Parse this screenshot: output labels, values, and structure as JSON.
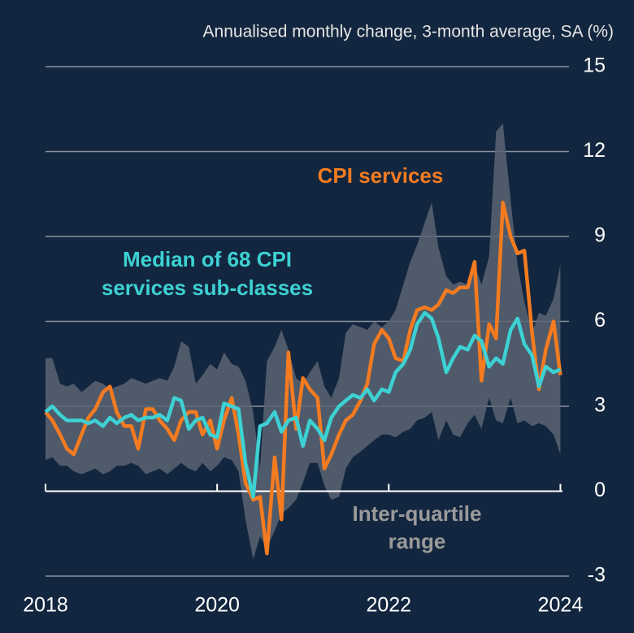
{
  "chart_data": {
    "type": "line",
    "title": "Annualised monthly change, 3-month average, SA (%)",
    "x": [
      2018.0,
      2018.08,
      2018.17,
      2018.25,
      2018.33,
      2018.42,
      2018.5,
      2018.58,
      2018.67,
      2018.75,
      2018.83,
      2018.92,
      2019.0,
      2019.08,
      2019.17,
      2019.25,
      2019.33,
      2019.42,
      2019.5,
      2019.58,
      2019.67,
      2019.75,
      2019.83,
      2019.92,
      2020.0,
      2020.08,
      2020.17,
      2020.25,
      2020.33,
      2020.42,
      2020.5,
      2020.58,
      2020.67,
      2020.75,
      2020.83,
      2020.92,
      2021.0,
      2021.08,
      2021.17,
      2021.25,
      2021.33,
      2021.42,
      2021.5,
      2021.58,
      2021.67,
      2021.75,
      2021.83,
      2021.92,
      2022.0,
      2022.08,
      2022.17,
      2022.25,
      2022.33,
      2022.42,
      2022.5,
      2022.58,
      2022.67,
      2022.75,
      2022.83,
      2022.92,
      2023.0,
      2023.08,
      2023.17,
      2023.25,
      2023.33,
      2023.42,
      2023.5,
      2023.58,
      2023.67,
      2023.75,
      2023.83,
      2023.92,
      2024.0
    ],
    "xlim": [
      2018,
      2024.1
    ],
    "xticks": [
      2018,
      2020,
      2022,
      2024
    ],
    "ylim": [
      -3,
      15
    ],
    "yticks": [
      -3,
      0,
      3,
      6,
      9,
      12,
      15
    ],
    "grid": true,
    "band": {
      "name": [
        "Inter-quartile",
        "range"
      ],
      "color": "#5b6473",
      "label_color": "#9a9a9a",
      "upper": [
        4.7,
        4.7,
        3.8,
        3.7,
        3.8,
        3.5,
        3.7,
        3.9,
        3.8,
        3.6,
        3.7,
        3.8,
        4.0,
        3.9,
        3.8,
        3.9,
        4.0,
        3.9,
        4.4,
        5.3,
        5.1,
        3.8,
        4.1,
        4.5,
        4.3,
        4.9,
        4.5,
        4.4,
        3.9,
        2.8,
        0.8,
        4.6,
        5.1,
        5.7,
        5.0,
        4.0,
        3.8,
        4.2,
        4.6,
        3.7,
        3.3,
        4.0,
        5.6,
        5.9,
        5.8,
        5.7,
        6.0,
        5.8,
        6.0,
        6.4,
        7.3,
        8.1,
        8.7,
        9.5,
        10.2,
        8.6,
        7.6,
        7.3,
        7.4,
        7.3,
        8.0,
        7.3,
        8.3,
        12.7,
        13.0,
        10.3,
        8.0,
        6.7,
        5.6,
        6.3,
        6.2,
        6.8,
        8.0
      ],
      "lower": [
        1.1,
        1.2,
        0.9,
        0.9,
        0.7,
        0.6,
        0.7,
        0.8,
        0.6,
        0.7,
        0.9,
        0.9,
        1.0,
        0.9,
        0.6,
        0.7,
        0.8,
        0.6,
        0.8,
        1.0,
        0.8,
        0.7,
        1.0,
        0.7,
        0.9,
        1.2,
        1.1,
        0.7,
        -1.0,
        -2.4,
        -1.6,
        -2.0,
        -1.4,
        -0.8,
        -0.6,
        -0.3,
        0.3,
        1.0,
        1.0,
        0.2,
        -0.3,
        -0.2,
        0.8,
        1.2,
        1.4,
        1.6,
        1.8,
        2.0,
        2.0,
        1.9,
        2.1,
        2.2,
        2.5,
        2.6,
        2.8,
        1.8,
        2.5,
        2.0,
        1.9,
        2.4,
        2.7,
        2.2,
        3.3,
        2.5,
        2.4,
        3.3,
        2.4,
        2.5,
        2.3,
        2.4,
        2.3,
        2.0,
        1.3
      ]
    },
    "series": [
      {
        "name": [
          "CPI services"
        ],
        "color": "#f47b20",
        "values": [
          2.8,
          2.5,
          2.0,
          1.5,
          1.3,
          2.0,
          2.6,
          2.9,
          3.5,
          3.7,
          2.8,
          2.3,
          2.3,
          1.5,
          2.9,
          2.9,
          2.5,
          2.2,
          1.8,
          2.5,
          2.8,
          2.8,
          2.0,
          2.5,
          1.5,
          2.5,
          3.3,
          2.0,
          0.3,
          -0.3,
          -0.2,
          -2.2,
          1.2,
          -1.0,
          4.9,
          2.2,
          4.0,
          3.6,
          3.3,
          0.8,
          1.3,
          2.0,
          2.5,
          2.7,
          3.2,
          3.8,
          5.2,
          5.7,
          5.4,
          4.7,
          4.6,
          5.7,
          6.4,
          6.5,
          6.4,
          6.6,
          7.1,
          7.0,
          7.2,
          7.2,
          8.1,
          3.9,
          5.9,
          5.4,
          10.2,
          9.0,
          8.4,
          8.5,
          5.6,
          3.6,
          5.0,
          6.0,
          4.1
        ]
      },
      {
        "name": [
          "Median of 68 CPI",
          "services sub-classes"
        ],
        "color": "#3dd1d3",
        "values": [
          2.8,
          3.0,
          2.7,
          2.5,
          2.5,
          2.5,
          2.4,
          2.5,
          2.3,
          2.6,
          2.4,
          2.6,
          2.7,
          2.5,
          2.6,
          2.6,
          2.7,
          2.5,
          3.3,
          3.2,
          2.2,
          2.5,
          2.6,
          2.0,
          1.9,
          3.1,
          3.0,
          2.9,
          1.0,
          -0.2,
          2.3,
          2.4,
          2.8,
          2.1,
          2.5,
          2.6,
          1.6,
          2.5,
          2.2,
          1.8,
          2.6,
          3.0,
          3.2,
          3.4,
          3.3,
          3.6,
          3.2,
          3.6,
          3.5,
          4.2,
          4.5,
          5.0,
          5.9,
          6.3,
          6.1,
          5.4,
          4.2,
          4.7,
          5.1,
          5.0,
          5.5,
          5.3,
          4.4,
          4.7,
          4.5,
          5.7,
          6.1,
          5.2,
          4.8,
          3.7,
          4.4,
          4.2,
          4.3
        ]
      }
    ]
  }
}
